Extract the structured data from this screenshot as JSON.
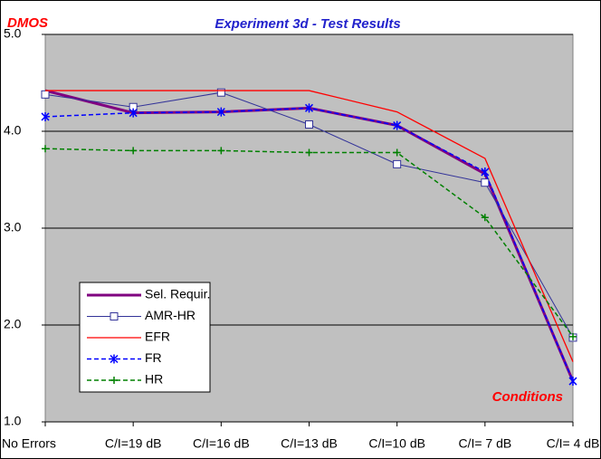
{
  "chart_data": {
    "type": "line",
    "title": "Experiment 3d - Test Results",
    "y_label": "DMOS",
    "x_label": "Conditions",
    "categories": [
      "No Errors",
      "C/I=19 dB",
      "C/I=16 dB",
      "C/I=13 dB",
      "C/I=10 dB",
      "C/I= 7 dB",
      "C/I= 4 dB"
    ],
    "ylim": [
      1,
      5
    ],
    "yticks": [
      {
        "value": 1,
        "label": "1.0"
      },
      {
        "value": 2,
        "label": "2.0"
      },
      {
        "value": 3,
        "label": "3.0"
      },
      {
        "value": 4,
        "label": "4.0"
      },
      {
        "value": 5,
        "label": "5.0"
      }
    ],
    "grid": true,
    "legend_position": "lower left",
    "series": [
      {
        "name": "Sel. Requir.",
        "color": "#800080",
        "width": 3,
        "style": "solid",
        "marker": "none",
        "values": [
          4.42,
          4.19,
          4.2,
          4.24,
          4.06,
          3.56,
          1.42
        ]
      },
      {
        "name": "AMR-HR",
        "color": "#333399",
        "width": 1,
        "style": "solid",
        "marker": "square",
        "values": [
          4.38,
          4.25,
          4.4,
          4.07,
          3.66,
          3.47,
          1.87
        ]
      },
      {
        "name": "EFR",
        "color": "#ff0000",
        "width": 1.3,
        "style": "solid",
        "marker": "none",
        "values": [
          4.42,
          4.42,
          4.42,
          4.42,
          4.2,
          3.72,
          1.62
        ]
      },
      {
        "name": "FR",
        "color": "#0000ff",
        "width": 1.5,
        "style": "dashed",
        "marker": "star",
        "values": [
          4.15,
          4.19,
          4.2,
          4.24,
          4.06,
          3.58,
          1.42
        ]
      },
      {
        "name": "HR",
        "color": "#008000",
        "width": 1.5,
        "style": "dashed",
        "marker": "plus",
        "values": [
          3.82,
          3.8,
          3.8,
          3.78,
          3.78,
          3.11,
          1.88
        ]
      }
    ]
  }
}
